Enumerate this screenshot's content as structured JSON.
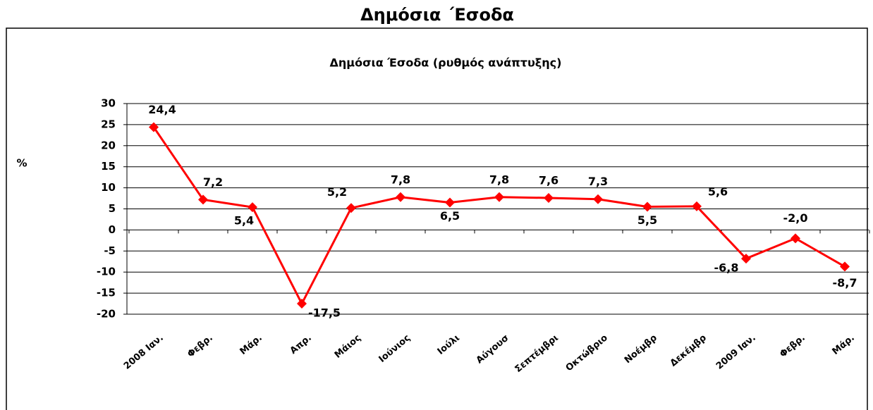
{
  "chart_data": {
    "type": "line",
    "title": "Δημόσια ΄Εσοδα",
    "subtitle": "Δημόσια Έσοδα (ρυθμός ανάπτυξης)",
    "y_label": "%",
    "categories": [
      "2008 Ιαν.",
      "Φεβρ.",
      "Μάρ.",
      "Απρ.",
      "Μάιος",
      "Ιούνιος",
      "Ιούλι",
      "Αύγουσ",
      "Σεπτέμβρι",
      "Οκτώβριο",
      "Νοέμβρ",
      "Δεκέμβρ",
      "2009 Ιαν.",
      "Φεβρ.",
      "Μάρ."
    ],
    "series": [
      {
        "name": "Δημόσια Έσοδα",
        "color": "#ff0000",
        "values": [
          24.4,
          7.2,
          5.4,
          -17.5,
          5.2,
          7.8,
          6.5,
          7.8,
          7.6,
          7.3,
          5.5,
          5.6,
          -6.8,
          -2.0,
          -8.7
        ],
        "value_labels": [
          "24,4",
          "7,2",
          "5,4",
          "-17,5",
          "5,2",
          "7,8",
          "6,5",
          "7,8",
          "7,6",
          "7,3",
          "5,5",
          "5,6",
          "-6,8",
          "-2,0",
          "-8,7"
        ]
      }
    ],
    "ylim": [
      -20,
      30
    ],
    "yticks": [
      -20,
      -15,
      -10,
      -5,
      0,
      5,
      10,
      15,
      20,
      25,
      30
    ],
    "grid": true
  }
}
